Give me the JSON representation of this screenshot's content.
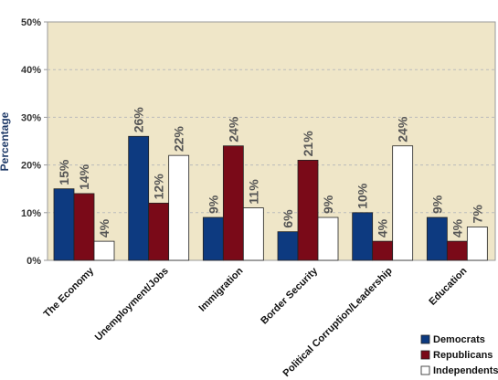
{
  "chart_data": {
    "type": "bar",
    "title": "",
    "xlabel": "",
    "ylabel": "Percentage",
    "ylim": [
      0,
      50
    ],
    "y_ticks": [
      "0%",
      "10%",
      "20%",
      "30%",
      "40%",
      "50%"
    ],
    "y_tick_values": [
      0,
      10,
      20,
      30,
      40,
      50
    ],
    "grid": true,
    "legend_position": "bottom-right",
    "categories": [
      "The Economy",
      "Unemployment/Jobs",
      "Immigration",
      "Border Security",
      "Political Corruption/Leadership",
      "Education"
    ],
    "series": [
      {
        "name": "Democrats",
        "values": [
          15,
          26,
          9,
          6,
          10,
          9
        ],
        "labels": [
          "15%",
          "26%",
          "9%",
          "6%",
          "10%",
          "9%"
        ],
        "color": "#0d3a80"
      },
      {
        "name": "Republicans",
        "values": [
          14,
          12,
          24,
          21,
          4,
          4
        ],
        "labels": [
          "14%",
          "12%",
          "24%",
          "21%",
          "4%",
          "4%"
        ],
        "color": "#7a0a18"
      },
      {
        "name": "Independents",
        "values": [
          4,
          22,
          11,
          9,
          24,
          7
        ],
        "labels": [
          "4%",
          "22%",
          "11%",
          "9%",
          "24%",
          "7%"
        ],
        "color": "#ffffff"
      }
    ],
    "colors": {
      "plot_background": "#efe6c8",
      "gridline": "#bbbbbb",
      "frame": "#9a9a9a"
    }
  }
}
